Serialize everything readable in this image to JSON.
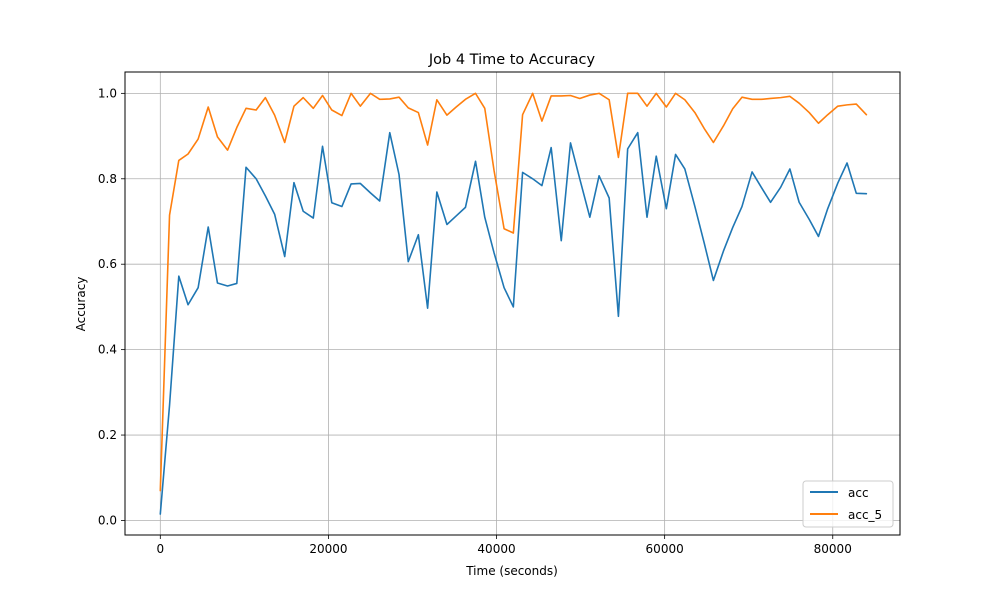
{
  "chart_data": {
    "type": "line",
    "title": "Job 4 Time to Accuracy",
    "xlabel": "Time (seconds)",
    "ylabel": "Accuracy",
    "xlim": [
      -4200,
      88000
    ],
    "ylim": [
      -0.034,
      1.05
    ],
    "xticks": [
      0,
      20000,
      40000,
      60000,
      80000
    ],
    "yticks": [
      0.0,
      0.2,
      0.4,
      0.6,
      0.8,
      1.0
    ],
    "xtick_labels": [
      "0",
      "20000",
      "40000",
      "60000",
      "80000"
    ],
    "ytick_labels": [
      "0.0",
      "0.2",
      "0.4",
      "0.6",
      "0.8",
      "1.0"
    ],
    "grid": true,
    "legend_position": "bottom-right",
    "colors": {
      "acc": "#1f77b4",
      "acc_5": "#ff7f0e"
    },
    "x": [
      0,
      1100,
      2200,
      3300,
      4500,
      5700,
      6800,
      8000,
      9100,
      10200,
      11400,
      12500,
      13600,
      14800,
      15900,
      17000,
      18200,
      19300,
      20400,
      21600,
      22700,
      23800,
      25000,
      26100,
      27300,
      28400,
      29500,
      30700,
      31800,
      32900,
      34100,
      35200,
      36300,
      37500,
      38600,
      39700,
      40900,
      42000,
      43100,
      44300,
      45400,
      46500,
      47700,
      48800,
      49900,
      51100,
      52200,
      53400,
      54500,
      55600,
      56800,
      57900,
      59000,
      60200,
      61300,
      62400,
      63600,
      64700,
      65800,
      67000,
      68100,
      69200,
      70400,
      71500,
      72600,
      73800,
      74900,
      76000,
      77200,
      78300,
      79400,
      80600,
      81700,
      82800,
      84000
    ],
    "series": [
      {
        "name": "acc",
        "values": [
          0.015,
          0.27,
          0.572,
          0.505,
          0.545,
          0.687,
          0.556,
          0.549,
          0.555,
          0.827,
          0.8,
          0.76,
          0.717,
          0.618,
          0.791,
          0.724,
          0.708,
          0.876,
          0.744,
          0.735,
          0.788,
          0.789,
          0.767,
          0.748,
          0.908,
          0.81,
          0.606,
          0.669,
          0.497,
          0.769,
          0.693,
          0.713,
          0.733,
          0.841,
          0.71,
          0.627,
          0.545,
          0.5,
          0.815,
          0.8,
          0.784,
          0.873,
          0.655,
          0.884,
          0.8,
          0.71,
          0.807,
          0.755,
          0.478,
          0.87,
          0.908,
          0.71,
          0.853,
          0.73,
          0.857,
          0.823,
          0.735,
          0.65,
          0.562,
          0.631,
          0.686,
          0.735,
          0.816,
          0.78,
          0.745,
          0.78,
          0.823,
          0.745,
          0.705,
          0.665,
          0.73,
          0.79,
          0.837,
          0.766,
          0.765
        ]
      },
      {
        "name": "acc_5",
        "values": [
          0.07,
          0.715,
          0.843,
          0.858,
          0.893,
          0.968,
          0.898,
          0.867,
          0.92,
          0.965,
          0.961,
          0.99,
          0.949,
          0.885,
          0.97,
          0.99,
          0.965,
          0.995,
          0.961,
          0.948,
          1.0,
          0.97,
          1.0,
          0.986,
          0.987,
          0.991,
          0.966,
          0.955,
          0.879,
          0.985,
          0.949,
          0.968,
          0.986,
          1.0,
          0.965,
          0.82,
          0.683,
          0.673,
          0.95,
          1.0,
          0.935,
          0.994,
          0.994,
          0.995,
          0.988,
          0.996,
          1.0,
          0.985,
          0.85,
          1.0,
          1.0,
          0.97,
          1.0,
          0.968,
          1.0,
          0.985,
          0.955,
          0.918,
          0.885,
          0.924,
          0.964,
          0.991,
          0.986,
          0.986,
          0.988,
          0.99,
          0.993,
          0.977,
          0.955,
          0.93,
          0.95,
          0.97,
          0.973,
          0.975,
          0.95
        ]
      }
    ]
  }
}
